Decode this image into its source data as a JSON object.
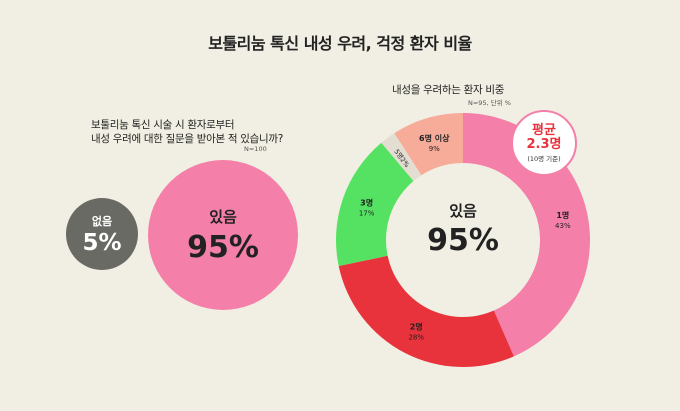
{
  "title": "보툴리눔 톡신 내성 우려, 걱정 환자 비율",
  "left_chart": {
    "question_line1": "보툴리눔 톡신 시술 시 환자로부터",
    "question_line2": "내성 우려에 대한 질문을 받아본 적 있습니까?",
    "n_note": "N=100",
    "no_label": "없음",
    "no_value": "5%",
    "yes_label": "있음",
    "yes_value": "95%"
  },
  "right_chart": {
    "title": "내성을 우려하는 환자 비중",
    "n_note": "N=95, 단위 %",
    "center_label": "있음",
    "center_value": "95%",
    "avg_line1": "평균",
    "avg_line2": "2.3명",
    "avg_line3": "(10명 기준)"
  },
  "colors": {
    "background": "#f1efe3",
    "pink": "#f47fa8",
    "red": "#e8323c",
    "green": "#55e262",
    "light_gray": "#e3ddd2",
    "salmon": "#f7ac9a",
    "dark_gray": "#6a6a64"
  },
  "chart_data": [
    {
      "type": "bubble",
      "categories": [
        "없음",
        "있음"
      ],
      "values": [
        5,
        95
      ],
      "unit": "%",
      "title": "보툴리눔 톡신 시술 시 환자로부터 내성 우려에 대한 질문을 받아본 적 있습니까?"
    },
    {
      "type": "pie",
      "title": "내성을 우려하는 환자 비중",
      "categories": [
        "1명",
        "2명",
        "3명",
        "5명",
        "6명 이상"
      ],
      "values": [
        43,
        28,
        17,
        2,
        9
      ],
      "labels": [
        "43%",
        "28%",
        "17%",
        "2%",
        "9%"
      ],
      "colors": [
        "#f47fa8",
        "#e8323c",
        "#55e262",
        "#e3ddd2",
        "#f7ac9a"
      ]
    }
  ]
}
